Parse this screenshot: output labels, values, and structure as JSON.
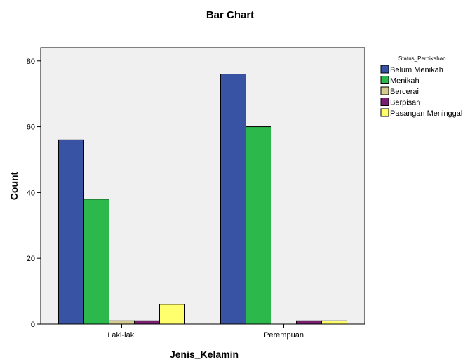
{
  "chart_data": {
    "type": "bar",
    "title": "Bar Chart",
    "xlabel": "Jenis_Kelamin",
    "ylabel": "Count",
    "ylim": [
      0,
      84
    ],
    "yticks": [
      0,
      20,
      40,
      60,
      80
    ],
    "categories": [
      "Laki-laki",
      "Perempuan"
    ],
    "legend_title": "Status_Pernikahan",
    "legend_position": "right",
    "grid": false,
    "series": [
      {
        "name": "Belum Menikah",
        "color": "#3953A4",
        "values": [
          56,
          76
        ]
      },
      {
        "name": "Menikah",
        "color": "#2DB84B",
        "values": [
          38,
          60
        ]
      },
      {
        "name": "Bercerai",
        "color": "#D6CC8E",
        "values": [
          1,
          0
        ]
      },
      {
        "name": "Berpisah",
        "color": "#7A1E72",
        "values": [
          1,
          1
        ]
      },
      {
        "name": "Pasangan Meninggal",
        "color": "#FFFF6E",
        "values": [
          6,
          1
        ]
      }
    ],
    "plot_background": "#F0F0F0"
  }
}
